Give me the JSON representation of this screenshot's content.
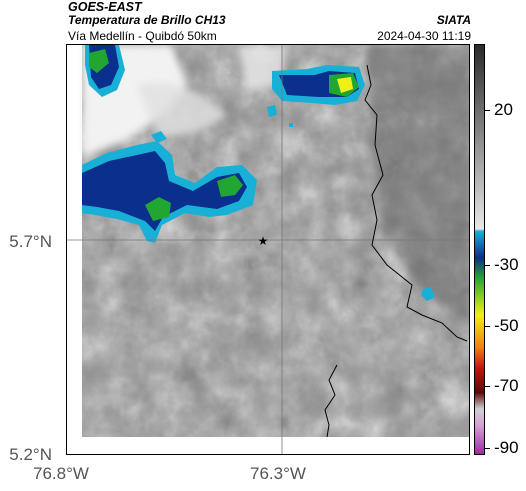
{
  "header": {
    "satellite": "GOES-EAST",
    "product": "Temperatura de Brillo CH13",
    "route": "Vía Medellín - Quibdó 50km",
    "organization": "SIATA",
    "datetime": "2024-04-30 11:19"
  },
  "axes": {
    "lat_ticks": [
      "5.7°N",
      "5.2°N"
    ],
    "lon_ticks": [
      "76.8°W",
      "76.3°W"
    ]
  },
  "colorbar": {
    "ticks": [
      "20",
      "-30",
      "-50",
      "-70",
      "-90"
    ],
    "colors": {
      "warm_dark": "#2a2a2a",
      "warm_light": "#e8e8e8",
      "cyan": "#19b0d8",
      "blue": "#0a2f8c",
      "green": "#22a632",
      "yellow": "#f1f016",
      "orange": "#f37e12",
      "red": "#c3140f",
      "dark_red": "#5a0a0a",
      "gray": "#cfcfcf",
      "magenta": "#a02ba0"
    }
  },
  "map": {
    "marker_icon": "star-icon"
  }
}
